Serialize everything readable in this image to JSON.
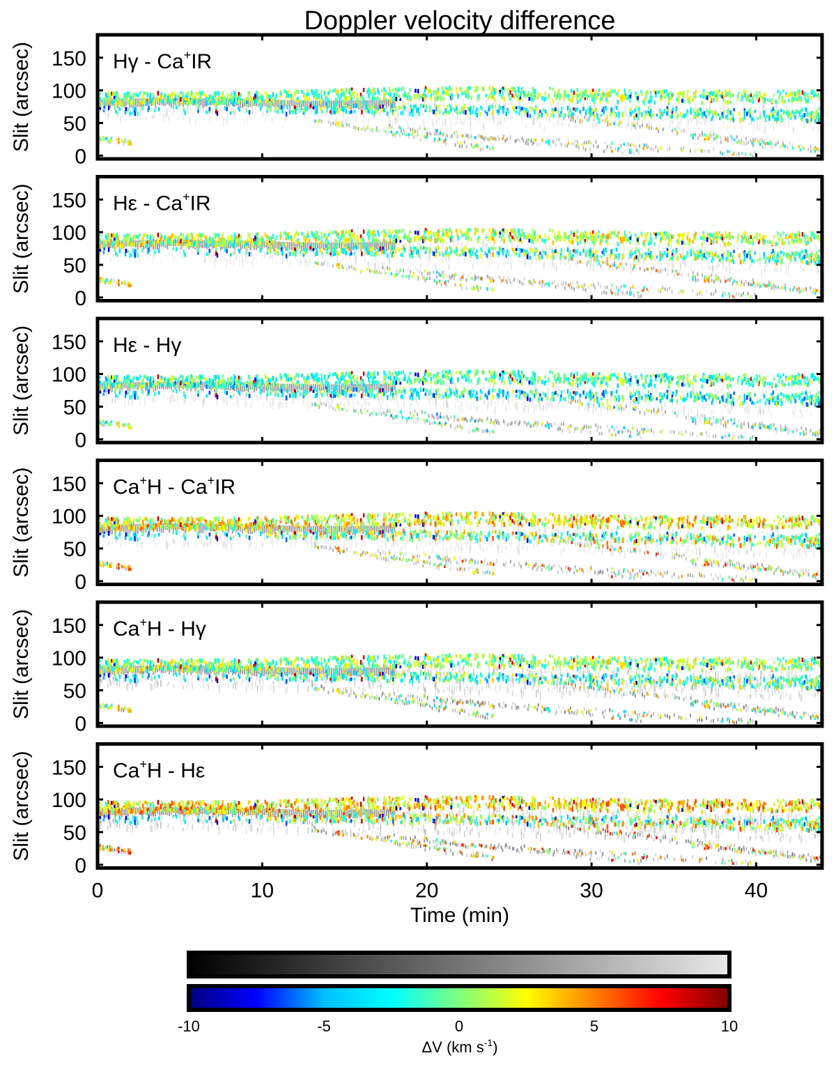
{
  "chart_data": {
    "type": "heatmap",
    "title": "Doppler velocity difference",
    "xlabel": "Time (min)",
    "ylabel": "Slit (arcsec)",
    "xlim": [
      0,
      44
    ],
    "ylim": [
      -5,
      185
    ],
    "x_ticks": [
      "0",
      "10",
      "20",
      "30",
      "40"
    ],
    "y_ticks": [
      "0",
      "50",
      "100",
      "150"
    ],
    "panels": [
      {
        "label": {
          "a": "Hγ - Ca",
          "sup": "+",
          "b": "IR",
          "sup2": "",
          "c": ""
        }
      },
      {
        "label": {
          "a": "Hε - Ca",
          "sup": "+",
          "b": "IR",
          "sup2": "",
          "c": ""
        }
      },
      {
        "label": {
          "a": "Hε - Hγ",
          "sup": "",
          "b": "",
          "sup2": "",
          "c": ""
        }
      },
      {
        "label": {
          "a": "Ca",
          "sup": "+",
          "b": "H - Ca",
          "sup2": "+",
          "c": "IR"
        }
      },
      {
        "label": {
          "a": "Ca",
          "sup": "+",
          "b": "H - Hγ",
          "sup2": "",
          "c": ""
        }
      },
      {
        "label": {
          "a": "Ca",
          "sup": "+",
          "b": "H - Hε",
          "sup2": "",
          "c": ""
        }
      }
    ],
    "colorbar": {
      "range": [
        -10,
        10
      ],
      "ticks": [
        "-10",
        "-5",
        "0",
        "5",
        "10"
      ],
      "label_main": "ΔV (km s",
      "label_sup": "-1",
      "label_end": ")",
      "gray_stops": [
        "#000000",
        "#e8e8e8"
      ],
      "color_stops": [
        "#00007f",
        "#0000ff",
        "#00bfff",
        "#00ffff",
        "#7fff7f",
        "#ffff00",
        "#ff7f00",
        "#ff0000",
        "#7f0000"
      ]
    }
  }
}
